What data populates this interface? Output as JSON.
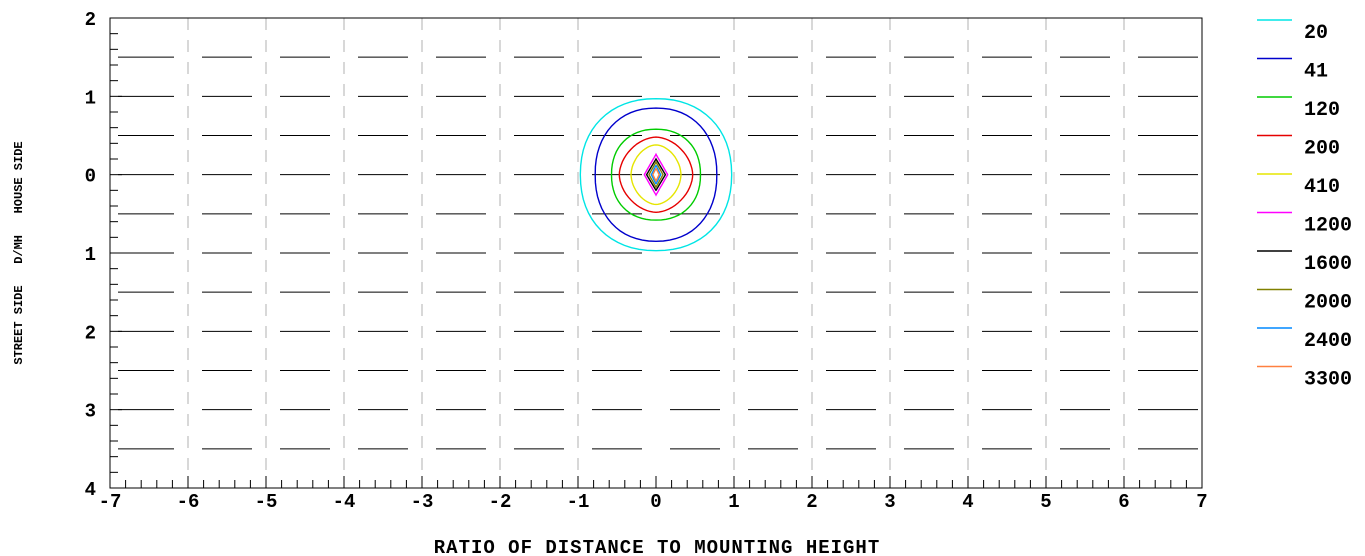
{
  "chart_data": {
    "type": "contour",
    "xlabel": "RATIO OF DISTANCE TO MOUNTING HEIGHT",
    "ylabel": "STREET SIDE   D/MH   HOUSE SIDE",
    "xlim": [
      -7,
      7
    ],
    "ylim": [
      -4,
      2
    ],
    "x_ticks": [
      "-7",
      "-6",
      "-5",
      "-4",
      "-3",
      "-2",
      "-1",
      "0",
      "1",
      "2",
      "3",
      "4",
      "5",
      "6",
      "7"
    ],
    "y_ticks": [
      {
        "value": 2,
        "label": "2"
      },
      {
        "value": 1,
        "label": "1"
      },
      {
        "value": 0,
        "label": "0"
      },
      {
        "value": -1,
        "label": "1"
      },
      {
        "value": -2,
        "label": "2"
      },
      {
        "value": -3,
        "label": "3"
      },
      {
        "value": -4,
        "label": "4"
      }
    ],
    "grid": "dashed vertical at integer x, short horizontal segments every 0.5",
    "legend_position": "right",
    "center": [
      0,
      0
    ],
    "series": [
      {
        "name": "20",
        "color": "#00e5e5",
        "rx": 0.97,
        "ry": 0.97
      },
      {
        "name": "41",
        "color": "#0000cc",
        "rx": 0.78,
        "ry": 0.85
      },
      {
        "name": "120",
        "color": "#00cc00",
        "rx": 0.57,
        "ry": 0.58
      },
      {
        "name": "200",
        "color": "#e60000",
        "rx": 0.47,
        "ry": 0.48
      },
      {
        "name": "410",
        "color": "#e5e500",
        "rx": 0.32,
        "ry": 0.38
      },
      {
        "name": "1200",
        "color": "#ff00ff",
        "rx": 0.15,
        "ry": 0.26
      },
      {
        "name": "1600",
        "color": "#000000",
        "rx": 0.12,
        "ry": 0.2
      },
      {
        "name": "2000",
        "color": "#808000",
        "rx": 0.09,
        "ry": 0.16
      },
      {
        "name": "2400",
        "color": "#0088ff",
        "rx": 0.06,
        "ry": 0.12
      },
      {
        "name": "3300",
        "color": "#ff8040",
        "rx": 0.04,
        "ry": 0.08
      }
    ]
  }
}
